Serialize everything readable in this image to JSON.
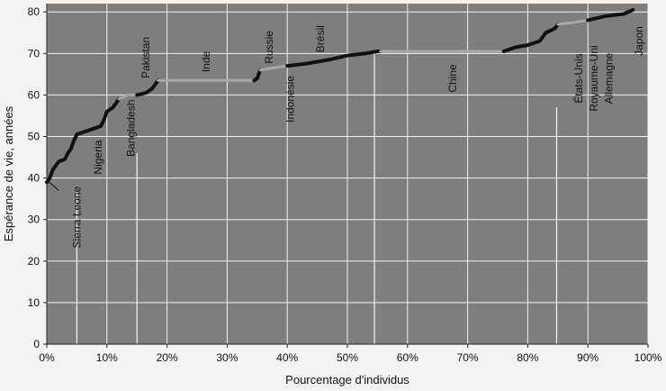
{
  "chart_data": {
    "type": "line",
    "xlabel": "Pourcentage d'individus",
    "ylabel": "Espérance de vie, années",
    "xlim": [
      0,
      100
    ],
    "ylim": [
      0,
      82
    ],
    "x_ticks": [
      "0%",
      "10%",
      "20%",
      "30%",
      "40%",
      "50%",
      "60%",
      "70%",
      "80%",
      "90%",
      "100%"
    ],
    "y_ticks": [
      "0",
      "10",
      "20",
      "30",
      "40",
      "50",
      "60",
      "70",
      "80"
    ],
    "grid": true,
    "colors": {
      "dark": "#111111",
      "gray": "#a8a8a8",
      "plot_bg": "#7e7e7e",
      "grid": "#f2f2f2"
    },
    "series": [
      {
        "style": "dark",
        "points": [
          [
            0,
            39
          ],
          [
            0.5,
            40
          ],
          [
            1,
            42
          ],
          [
            1.5,
            43
          ],
          [
            2,
            44
          ],
          [
            3,
            44.5
          ],
          [
            3.5,
            46
          ],
          [
            4,
            47
          ],
          [
            4.5,
            49
          ],
          [
            5,
            50.5
          ],
          [
            6,
            51
          ],
          [
            7,
            51.5
          ],
          [
            8,
            52
          ],
          [
            9,
            52.5
          ],
          [
            9.5,
            54
          ],
          [
            10,
            56
          ],
          [
            11,
            57
          ],
          [
            12,
            59
          ]
        ]
      },
      {
        "style": "gray",
        "points": [
          [
            12,
            59
          ],
          [
            13.5,
            60
          ],
          [
            15,
            60
          ]
        ]
      },
      {
        "style": "dark",
        "points": [
          [
            15,
            60
          ],
          [
            16.5,
            60.5
          ],
          [
            17.5,
            61.5
          ],
          [
            18,
            62.5
          ],
          [
            18.5,
            63.5
          ]
        ]
      },
      {
        "style": "gray",
        "points": [
          [
            18.5,
            63.5
          ],
          [
            26,
            63.5
          ],
          [
            34.5,
            63.5
          ]
        ]
      },
      {
        "style": "dark",
        "points": [
          [
            34.5,
            63.5
          ],
          [
            35,
            64
          ],
          [
            35.5,
            66
          ]
        ]
      },
      {
        "style": "gray",
        "points": [
          [
            35.5,
            66
          ],
          [
            37.5,
            66.5
          ],
          [
            40,
            67
          ]
        ]
      },
      {
        "style": "dark",
        "points": [
          [
            40,
            67
          ],
          [
            43,
            67.5
          ],
          [
            45,
            68
          ],
          [
            47,
            68.5
          ],
          [
            50,
            69.5
          ],
          [
            53,
            70
          ],
          [
            55,
            70.5
          ],
          [
            55.5,
            70.5
          ]
        ]
      },
      {
        "style": "gray",
        "points": [
          [
            55.5,
            70.5
          ],
          [
            65,
            70.5
          ],
          [
            76,
            70.5
          ]
        ]
      },
      {
        "style": "dark",
        "points": [
          [
            76,
            70.5
          ],
          [
            78,
            71.5
          ],
          [
            80,
            72
          ],
          [
            82,
            73
          ],
          [
            83,
            75
          ],
          [
            84.5,
            76
          ],
          [
            85,
            77
          ]
        ]
      },
      {
        "style": "gray",
        "points": [
          [
            85,
            77
          ],
          [
            88,
            77.5
          ],
          [
            90,
            78
          ]
        ]
      },
      {
        "style": "dark",
        "points": [
          [
            90,
            78
          ],
          [
            93,
            79
          ],
          [
            96,
            79.5
          ],
          [
            97.5,
            80.5
          ]
        ]
      }
    ],
    "annotations": [
      {
        "text": "Sierra Leone",
        "x": 5,
        "y": 38,
        "rotate": true,
        "anchor": "end"
      },
      {
        "text": "Nigeria",
        "x": 8.5,
        "y": 45,
        "rotate": true,
        "anchor": "middle"
      },
      {
        "text": "Bangladesh",
        "x": 14,
        "y": 52,
        "rotate": true,
        "anchor": "middle"
      },
      {
        "text": "Pakistan",
        "x": 16.5,
        "y": 69,
        "rotate": true,
        "anchor": "middle"
      },
      {
        "text": "Inde",
        "x": 26.5,
        "y": 68,
        "rotate": true,
        "anchor": "middle"
      },
      {
        "text": "Russie",
        "x": 37,
        "y": 71.5,
        "rotate": true,
        "anchor": "middle"
      },
      {
        "text": "Indonésie",
        "x": 40.5,
        "y": 59,
        "rotate": true,
        "anchor": "middle"
      },
      {
        "text": "Brésil",
        "x": 45.5,
        "y": 73.5,
        "rotate": true,
        "anchor": "middle"
      },
      {
        "text": "Chine",
        "x": 67.5,
        "y": 64,
        "rotate": true,
        "anchor": "middle"
      },
      {
        "text": "États-Unis",
        "x": 88.5,
        "y": 64,
        "rotate": true,
        "anchor": "middle"
      },
      {
        "text": "Royaume-Uni",
        "x": 91,
        "y": 64,
        "rotate": true,
        "anchor": "middle"
      },
      {
        "text": "Allemagne",
        "x": 93.5,
        "y": 64,
        "rotate": true,
        "anchor": "middle"
      },
      {
        "text": "Japon",
        "x": 98.5,
        "y": 73,
        "rotate": true,
        "anchor": "middle"
      }
    ],
    "callout_lines": [
      {
        "x": 5,
        "y_from": 0,
        "y_to": 37
      },
      {
        "x": 15,
        "y_from": 0,
        "y_to": 46
      },
      {
        "x": 54.5,
        "y_from": 0,
        "y_to": 70
      },
      {
        "x": 84.8,
        "y_from": 0,
        "y_to": 57
      }
    ]
  }
}
